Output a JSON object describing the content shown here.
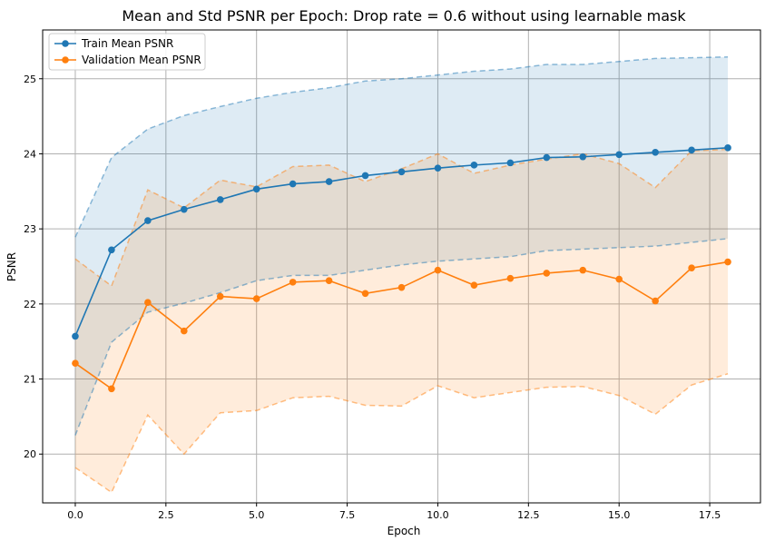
{
  "chart_data": {
    "type": "line",
    "title": "Mean and Std PSNR per Epoch: Drop rate = 0.6 without using learnable mask",
    "xlabel": "Epoch",
    "ylabel": "PSNR",
    "xlim": [
      -0.9,
      18.9
    ],
    "ylim": [
      19.35,
      25.65
    ],
    "xticks": [
      0.0,
      2.5,
      5.0,
      7.5,
      10.0,
      12.5,
      15.0,
      17.5
    ],
    "xtick_labels": [
      "0.0",
      "2.5",
      "5.0",
      "7.5",
      "10.0",
      "12.5",
      "15.0",
      "17.5"
    ],
    "yticks": [
      20,
      21,
      22,
      23,
      24,
      25
    ],
    "ytick_labels": [
      "20",
      "21",
      "22",
      "23",
      "24",
      "25"
    ],
    "grid": true,
    "legend_position": "top-left",
    "x": [
      0,
      1,
      2,
      3,
      4,
      5,
      6,
      7,
      8,
      9,
      10,
      11,
      12,
      13,
      14,
      15,
      16,
      17,
      18
    ],
    "series": [
      {
        "name": "Train Mean PSNR",
        "color": "#1f77b4",
        "band_color": "#cfe0f0",
        "values": [
          21.57,
          22.72,
          23.11,
          23.26,
          23.39,
          23.53,
          23.6,
          23.63,
          23.71,
          23.76,
          23.81,
          23.85,
          23.88,
          23.95,
          23.96,
          23.99,
          24.02,
          24.05,
          24.08
        ],
        "upper": [
          22.89,
          23.95,
          24.33,
          24.51,
          24.63,
          24.74,
          24.82,
          24.88,
          24.97,
          25.0,
          25.05,
          25.1,
          25.13,
          25.19,
          25.19,
          25.23,
          25.27,
          25.28,
          25.29
        ],
        "lower": [
          20.25,
          21.49,
          21.89,
          22.01,
          22.15,
          22.31,
          22.38,
          22.38,
          22.45,
          22.52,
          22.57,
          22.6,
          22.63,
          22.71,
          22.73,
          22.75,
          22.77,
          22.82,
          22.87
        ]
      },
      {
        "name": "Validation Mean PSNR",
        "color": "#ff7f0e",
        "band_color": "#fde0c8",
        "values": [
          21.21,
          20.87,
          22.02,
          21.64,
          22.1,
          22.07,
          22.29,
          22.31,
          22.14,
          22.22,
          22.45,
          22.25,
          22.34,
          22.41,
          22.45,
          22.33,
          22.04,
          22.48,
          22.56
        ],
        "upper": [
          22.6,
          22.24,
          23.52,
          23.28,
          23.65,
          23.56,
          23.83,
          23.85,
          23.63,
          23.8,
          24.0,
          23.74,
          23.85,
          23.93,
          24.0,
          23.87,
          23.55,
          24.04,
          24.06
        ],
        "lower": [
          19.82,
          19.49,
          20.52,
          20.0,
          20.55,
          20.58,
          20.75,
          20.77,
          20.65,
          20.64,
          20.91,
          20.75,
          20.82,
          20.89,
          20.9,
          20.78,
          20.53,
          20.92,
          21.07
        ]
      }
    ]
  }
}
